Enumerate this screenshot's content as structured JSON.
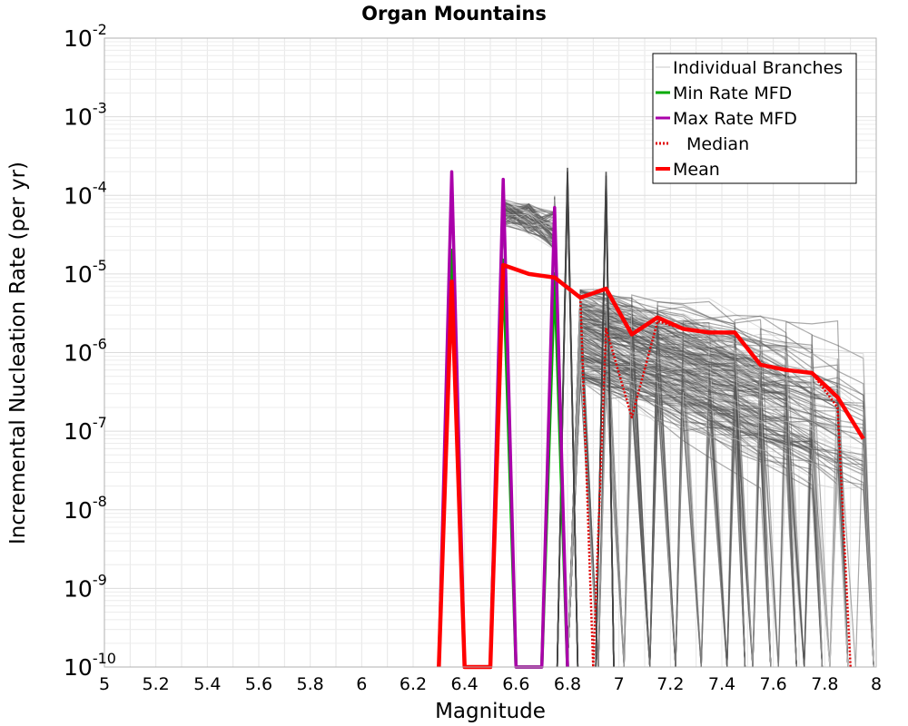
{
  "chart_data": {
    "type": "line",
    "title": "Organ Mountains",
    "xlabel": "Magnitude",
    "ylabel": "Incremental Nucleation Rate (per yr)",
    "xlim": [
      5,
      8
    ],
    "ylim": [
      1e-10,
      0.01
    ],
    "yscale": "log",
    "grid": true,
    "legend_position": "top-right",
    "x_ticks": [
      "5",
      "5.2",
      "5.4",
      "5.6",
      "5.8",
      "6",
      "6.2",
      "6.4",
      "6.6",
      "6.8",
      "7",
      "7.2",
      "7.4",
      "7.6",
      "7.8",
      "8"
    ],
    "y_ticks": [
      {
        "base": "10",
        "exp": "-10"
      },
      {
        "base": "10",
        "exp": "-9"
      },
      {
        "base": "10",
        "exp": "-8"
      },
      {
        "base": "10",
        "exp": "-7"
      },
      {
        "base": "10",
        "exp": "-6"
      },
      {
        "base": "10",
        "exp": "-5"
      },
      {
        "base": "10",
        "exp": "-4"
      },
      {
        "base": "10",
        "exp": "-3"
      },
      {
        "base": "10",
        "exp": "-2"
      }
    ],
    "legend": [
      {
        "label": "Individual Branches",
        "color": "#c8c8c8",
        "style": "thin"
      },
      {
        "label": "Min Rate MFD",
        "color": "#00aa00",
        "style": "solid"
      },
      {
        "label": "Max Rate MFD",
        "color": "#aa00aa",
        "style": "solid"
      },
      {
        "label": "Median",
        "color": "#e00000",
        "style": "dotted"
      },
      {
        "label": "Mean",
        "color": "#ff0000",
        "style": "thick"
      }
    ],
    "series": [
      {
        "name": "Min Rate MFD",
        "color": "#00aa00",
        "x": [
          6.3,
          6.35,
          6.4,
          6.5,
          6.55,
          6.6,
          6.7,
          6.75,
          6.8
        ],
        "y": [
          1e-10,
          2e-05,
          1e-10,
          1e-10,
          1.5e-05,
          1e-10,
          1e-10,
          1e-05,
          1e-10
        ]
      },
      {
        "name": "Max Rate MFD",
        "color": "#aa00aa",
        "x": [
          6.3,
          6.35,
          6.4,
          6.5,
          6.55,
          6.6,
          6.7,
          6.75,
          6.8
        ],
        "y": [
          1e-10,
          0.0002,
          1e-10,
          1e-10,
          0.00016,
          1e-10,
          1e-10,
          7e-05,
          1e-10
        ]
      },
      {
        "name": "Median",
        "color": "#e00000",
        "x": [
          6.3,
          6.35,
          6.4,
          6.5,
          6.55,
          6.65,
          6.75,
          6.85,
          6.9,
          6.95,
          7.05,
          7.15,
          7.25,
          7.35,
          7.45,
          7.55,
          7.65,
          7.75,
          7.85,
          7.9
        ],
        "y": [
          1e-10,
          8e-06,
          1e-10,
          1e-10,
          1.3e-05,
          1e-05,
          9e-06,
          5e-06,
          1e-10,
          2e-06,
          1.5e-07,
          2.5e-06,
          2e-06,
          1.8e-06,
          1.8e-06,
          7e-07,
          6e-07,
          5.5e-07,
          2e-07,
          1e-10
        ]
      },
      {
        "name": "Mean",
        "color": "#ff0000",
        "x": [
          6.3,
          6.35,
          6.4,
          6.5,
          6.55,
          6.65,
          6.75,
          6.85,
          6.95,
          7.05,
          7.15,
          7.25,
          7.35,
          7.45,
          7.55,
          7.65,
          7.75,
          7.85,
          7.95
        ],
        "y": [
          1e-10,
          8e-06,
          1e-10,
          1e-10,
          1.3e-05,
          1e-05,
          9e-06,
          5e-06,
          6.5e-06,
          1.7e-06,
          2.8e-06,
          2e-06,
          1.8e-06,
          1.8e-06,
          7e-07,
          6e-07,
          5.5e-07,
          2.7e-07,
          8e-08
        ]
      }
    ]
  }
}
